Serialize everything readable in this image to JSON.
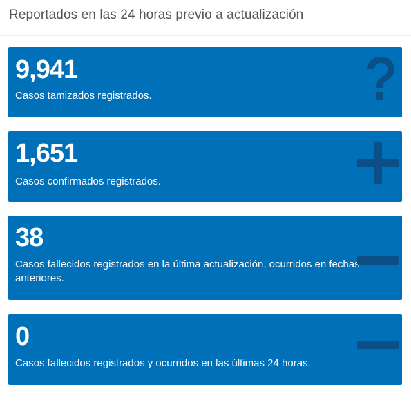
{
  "header": {
    "title": "Reportados en las 24 horas previo a actualización"
  },
  "colors": {
    "card_bg": "#0070b8",
    "icon_color": "#0b4f86",
    "text": "#ffffff",
    "header_text": "#555555"
  },
  "cards": [
    {
      "value": "9,941",
      "description": "Casos tamizados registrados.",
      "icon": "question-icon"
    },
    {
      "value": "1,651",
      "description": "Casos confirmados registrados.",
      "icon": "plus-icon"
    },
    {
      "value": "38",
      "description": "Casos fallecidos registrados en la última actualización, ocurridos en fechas anteriores.",
      "icon": "minus-icon"
    },
    {
      "value": "0",
      "description": "Casos fallecidos registrados y ocurridos en las últimas 24 horas.",
      "icon": "minus-icon"
    }
  ]
}
